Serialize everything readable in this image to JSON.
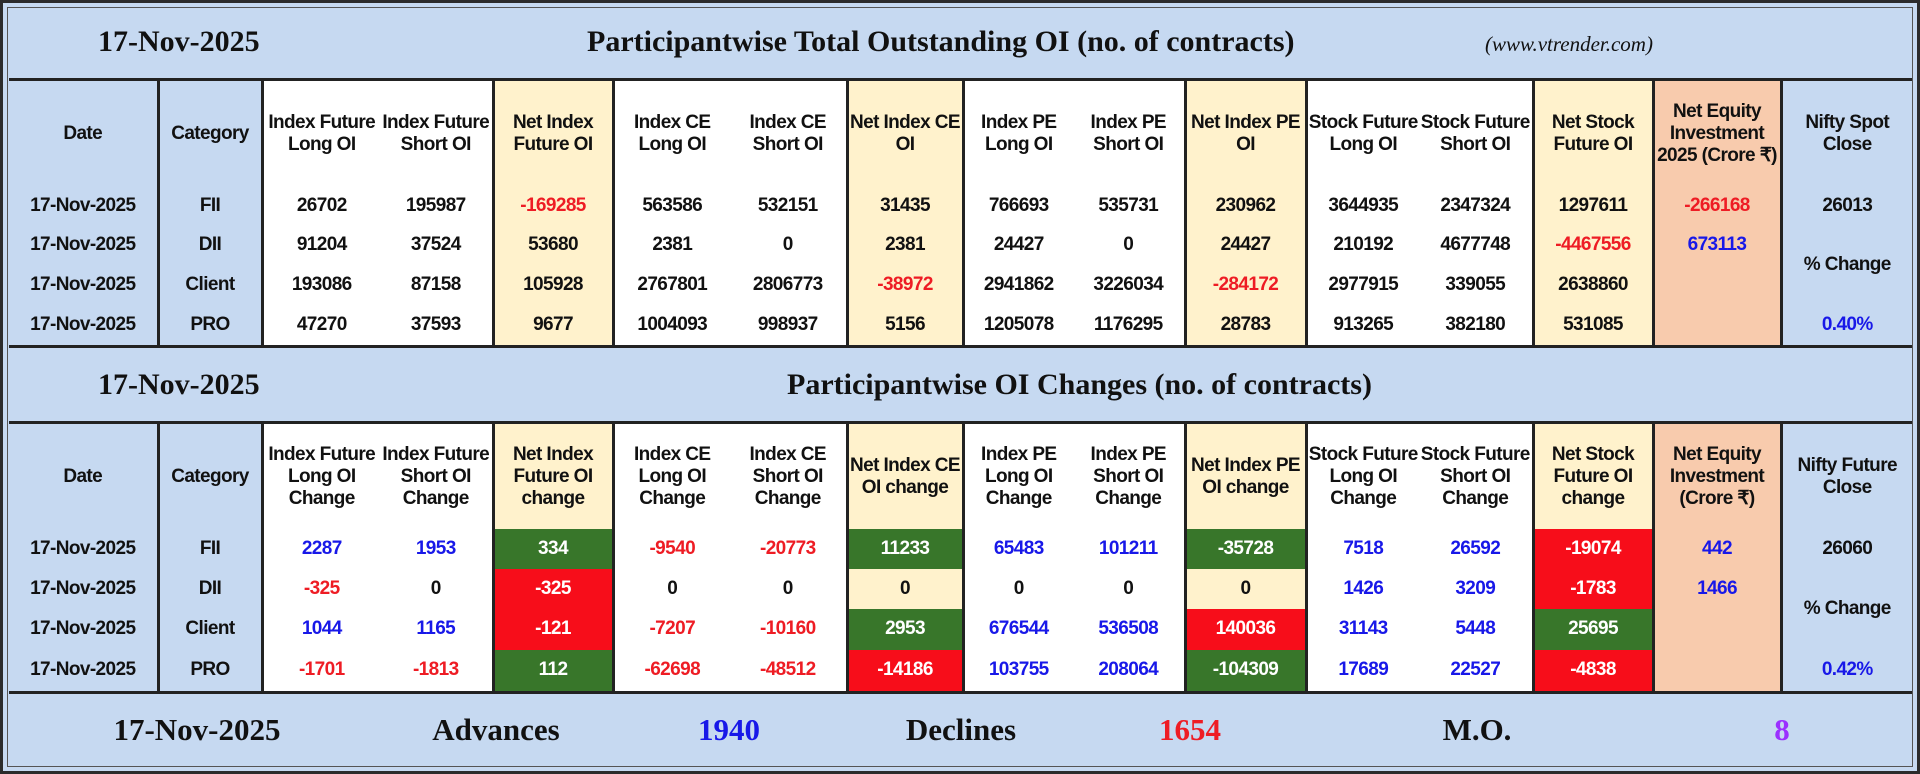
{
  "colors": {
    "band": "#c6d9f1",
    "cream": "#fff2cc",
    "orange": "#f8cbad",
    "green": "#38762a",
    "red": "#f70d1a",
    "blue_text": "#1818e8",
    "red_text": "#ee1c24",
    "purple_text": "#9b30ff"
  },
  "section1": {
    "date": "17-Nov-2025",
    "title": "Participantwise Total Outstanding OI (no. of contracts)",
    "site": "(www.vtrender.com)",
    "headers": [
      "Date",
      "Category",
      "Index Future Long OI",
      "Index Future Short OI",
      "Net Index Future OI",
      "Index CE Long OI",
      "Index CE Short OI",
      "Net Index CE OI",
      "Index PE Long OI",
      "Index PE Short OI",
      "Net Index PE OI",
      "Stock Future Long OI",
      "Stock Future Short OI",
      "Net Stock Future OI",
      "Net Equity Investment 2025 (Crore ₹)",
      "Nifty Spot Close"
    ],
    "rows": [
      {
        "date": "17-Nov-2025",
        "category": "FII",
        "cells": [
          [
            "26702",
            "k",
            ""
          ],
          [
            "195987",
            "k",
            ""
          ],
          [
            "-169285",
            "r",
            ""
          ],
          [
            "563586",
            "k",
            ""
          ],
          [
            "532151",
            "k",
            ""
          ],
          [
            "31435",
            "k",
            ""
          ],
          [
            "766693",
            "k",
            ""
          ],
          [
            "535731",
            "k",
            ""
          ],
          [
            "230962",
            "k",
            ""
          ],
          [
            "3644935",
            "k",
            ""
          ],
          [
            "2347324",
            "k",
            ""
          ],
          [
            "1297611",
            "k",
            ""
          ],
          [
            "-266168",
            "r",
            ""
          ]
        ]
      },
      {
        "date": "17-Nov-2025",
        "category": "DII",
        "cells": [
          [
            "91204",
            "k",
            ""
          ],
          [
            "37524",
            "k",
            ""
          ],
          [
            "53680",
            "k",
            ""
          ],
          [
            "2381",
            "k",
            ""
          ],
          [
            "0",
            "k",
            ""
          ],
          [
            "2381",
            "k",
            ""
          ],
          [
            "24427",
            "k",
            ""
          ],
          [
            "0",
            "k",
            ""
          ],
          [
            "24427",
            "k",
            ""
          ],
          [
            "210192",
            "k",
            ""
          ],
          [
            "4677748",
            "k",
            ""
          ],
          [
            "-4467556",
            "r",
            ""
          ],
          [
            "673113",
            "b",
            ""
          ]
        ]
      },
      {
        "date": "17-Nov-2025",
        "category": "Client",
        "cells": [
          [
            "193086",
            "k",
            ""
          ],
          [
            "87158",
            "k",
            ""
          ],
          [
            "105928",
            "k",
            ""
          ],
          [
            "2767801",
            "k",
            ""
          ],
          [
            "2806773",
            "k",
            ""
          ],
          [
            "-38972",
            "r",
            ""
          ],
          [
            "2941862",
            "k",
            ""
          ],
          [
            "3226034",
            "k",
            ""
          ],
          [
            "-284172",
            "r",
            ""
          ],
          [
            "2977915",
            "k",
            ""
          ],
          [
            "339055",
            "k",
            ""
          ],
          [
            "2638860",
            "k",
            ""
          ],
          [
            "",
            "k",
            ""
          ]
        ]
      },
      {
        "date": "17-Nov-2025",
        "category": "PRO",
        "cells": [
          [
            "47270",
            "k",
            ""
          ],
          [
            "37593",
            "k",
            ""
          ],
          [
            "9677",
            "k",
            ""
          ],
          [
            "1004093",
            "k",
            ""
          ],
          [
            "998937",
            "k",
            ""
          ],
          [
            "5156",
            "k",
            ""
          ],
          [
            "1205078",
            "k",
            ""
          ],
          [
            "1176295",
            "k",
            ""
          ],
          [
            "28783",
            "k",
            ""
          ],
          [
            "913265",
            "k",
            ""
          ],
          [
            "382180",
            "k",
            ""
          ],
          [
            "531085",
            "k",
            ""
          ],
          [
            "",
            "k",
            ""
          ]
        ]
      }
    ],
    "nifty": {
      "close": "26013",
      "change_label": "% Change",
      "change": "0.40%"
    }
  },
  "section2": {
    "date": "17-Nov-2025",
    "title": "Participantwise OI Changes (no. of contracts)",
    "headers": [
      "Date",
      "Category",
      "Index Future Long OI Change",
      "Index Future Short OI Change",
      "Net Index Future OI change",
      "Index CE Long OI Change",
      "Index CE Short OI Change",
      "Net Index CE OI change",
      "Index PE Long OI Change",
      "Index PE Short OI Change",
      "Net Index PE OI change",
      "Stock Future Long OI Change",
      "Stock Future Short OI Change",
      "Net Stock Future OI change",
      "Net Equity Investment (Crore ₹)",
      "Nifty Future Close"
    ],
    "rows": [
      {
        "date": "17-Nov-2025",
        "category": "FII",
        "cells": [
          [
            "2287",
            "b",
            ""
          ],
          [
            "1953",
            "b",
            ""
          ],
          [
            "334",
            "w",
            "green"
          ],
          [
            "-9540",
            "r",
            ""
          ],
          [
            "-20773",
            "r",
            ""
          ],
          [
            "11233",
            "w",
            "green"
          ],
          [
            "65483",
            "b",
            ""
          ],
          [
            "101211",
            "b",
            ""
          ],
          [
            "-35728",
            "w",
            "green"
          ],
          [
            "7518",
            "b",
            ""
          ],
          [
            "26592",
            "b",
            ""
          ],
          [
            "-19074",
            "w",
            "red"
          ],
          [
            "442",
            "b",
            ""
          ]
        ]
      },
      {
        "date": "17-Nov-2025",
        "category": "DII",
        "cells": [
          [
            "-325",
            "r",
            ""
          ],
          [
            "0",
            "k",
            ""
          ],
          [
            "-325",
            "w",
            "red"
          ],
          [
            "0",
            "k",
            ""
          ],
          [
            "0",
            "k",
            ""
          ],
          [
            "0",
            "k",
            ""
          ],
          [
            "0",
            "k",
            ""
          ],
          [
            "0",
            "k",
            ""
          ],
          [
            "0",
            "k",
            ""
          ],
          [
            "1426",
            "b",
            ""
          ],
          [
            "3209",
            "b",
            ""
          ],
          [
            "-1783",
            "w",
            "red"
          ],
          [
            "1466",
            "b",
            ""
          ]
        ]
      },
      {
        "date": "17-Nov-2025",
        "category": "Client",
        "cells": [
          [
            "1044",
            "b",
            ""
          ],
          [
            "1165",
            "b",
            ""
          ],
          [
            "-121",
            "w",
            "red"
          ],
          [
            "-7207",
            "r",
            ""
          ],
          [
            "-10160",
            "r",
            ""
          ],
          [
            "2953",
            "w",
            "green"
          ],
          [
            "676544",
            "b",
            ""
          ],
          [
            "536508",
            "b",
            ""
          ],
          [
            "140036",
            "w",
            "red"
          ],
          [
            "31143",
            "b",
            ""
          ],
          [
            "5448",
            "b",
            ""
          ],
          [
            "25695",
            "w",
            "green"
          ],
          [
            "",
            "k",
            ""
          ]
        ]
      },
      {
        "date": "17-Nov-2025",
        "category": "PRO",
        "cells": [
          [
            "-1701",
            "r",
            ""
          ],
          [
            "-1813",
            "r",
            ""
          ],
          [
            "112",
            "w",
            "green"
          ],
          [
            "-62698",
            "r",
            ""
          ],
          [
            "-48512",
            "r",
            ""
          ],
          [
            "-14186",
            "w",
            "red"
          ],
          [
            "103755",
            "b",
            ""
          ],
          [
            "208064",
            "b",
            ""
          ],
          [
            "-104309",
            "w",
            "green"
          ],
          [
            "17689",
            "b",
            ""
          ],
          [
            "22527",
            "b",
            ""
          ],
          [
            "-4838",
            "w",
            "red"
          ],
          [
            "",
            "k",
            ""
          ]
        ]
      }
    ],
    "nifty": {
      "close": "26060",
      "change_label": "% Change",
      "change": "0.42%"
    }
  },
  "footer": {
    "date": "17-Nov-2025",
    "advances_label": "Advances",
    "advances": "1940",
    "declines_label": "Declines",
    "declines": "1654",
    "mo_label": "M.O.",
    "mo": "8"
  }
}
